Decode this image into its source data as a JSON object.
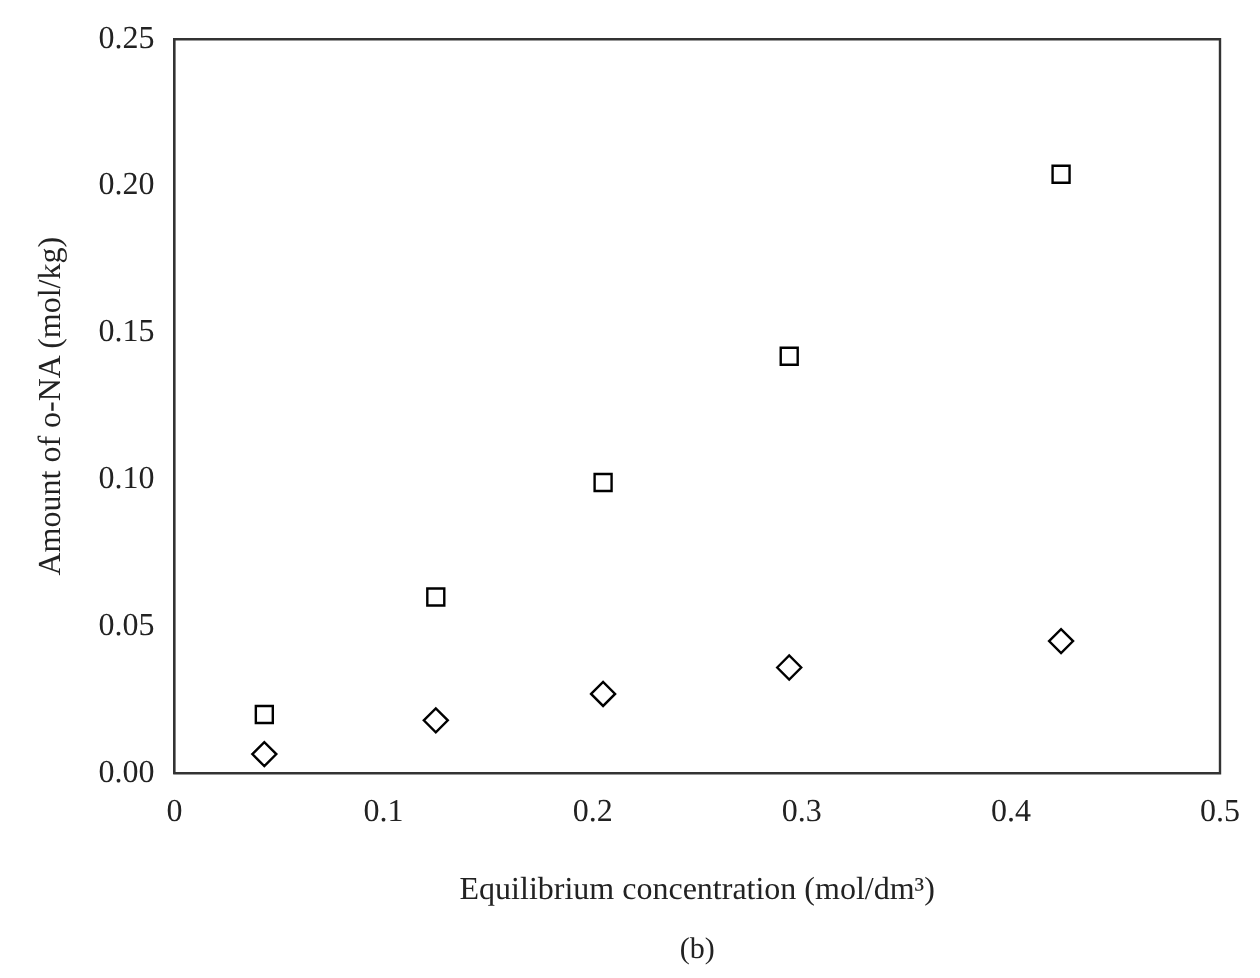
{
  "chart_data": {
    "type": "scatter",
    "xlabel": "Equilibrium concentration (mol/dm³)",
    "ylabel": "Amount of o-NA (mol/kg)",
    "annotations": [
      "(b)"
    ],
    "x": [
      0.043,
      0.125,
      0.205,
      0.294,
      0.424
    ],
    "series": [
      {
        "color": "#000000",
        "marker": "square",
        "values": [
          0.02,
          0.06,
          0.099,
          0.142,
          0.204
        ]
      },
      {
        "color": "#000000",
        "marker": "diamond",
        "values": [
          0.0065,
          0.018,
          0.027,
          0.036,
          0.045
        ]
      }
    ],
    "xlim": [
      0,
      0.5
    ],
    "xticks": [
      0,
      0.1,
      0.2,
      0.3,
      0.4,
      0.5
    ],
    "ylim": [
      0,
      0.25
    ],
    "yticks": [
      {
        "value": 0,
        "label": "0.00"
      },
      {
        "value": 0.05,
        "label": "0.05"
      },
      {
        "value": 0.1,
        "label": "0.10"
      },
      {
        "value": 0.15,
        "label": "0.15"
      },
      {
        "value": 0.2,
        "label": "0.20"
      },
      {
        "value": 0.25,
        "label": "0.25"
      }
    ],
    "grid": false,
    "legend": false
  }
}
